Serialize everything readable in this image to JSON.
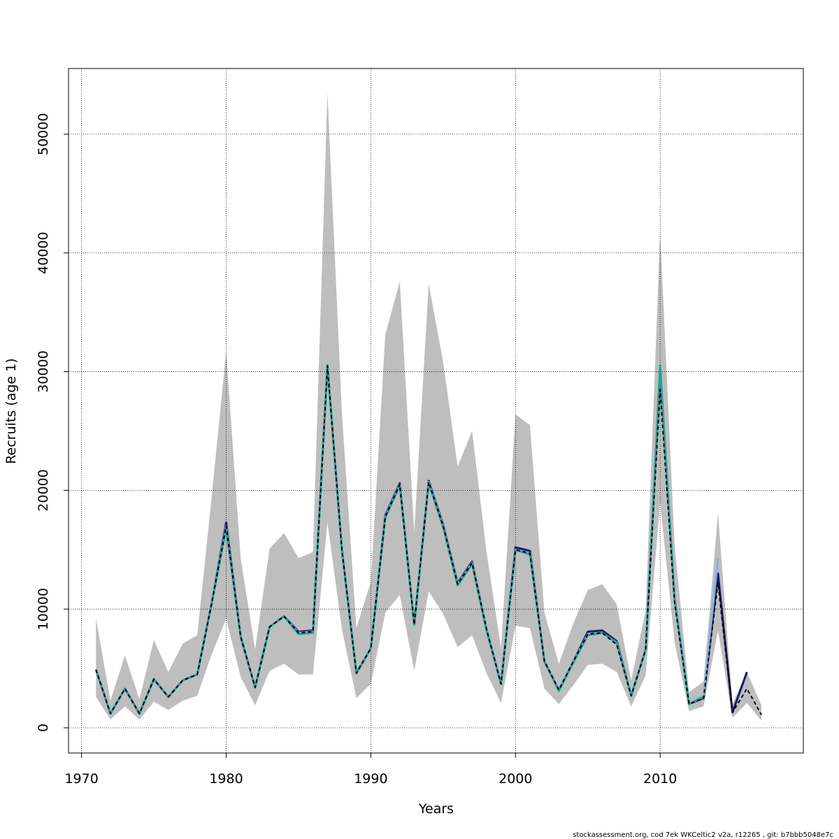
{
  "chart_data": {
    "type": "line",
    "x_label": "Years",
    "y_label": "Recruits (age 1)",
    "footer": "stockassessment.org, cod 7ek WKCeltic2 v2a, r12265 , git: b7bbb5048e7c",
    "x": [
      1971,
      1972,
      1973,
      1974,
      1975,
      1976,
      1977,
      1978,
      1979,
      1980,
      1981,
      1982,
      1983,
      1984,
      1985,
      1986,
      1987,
      1988,
      1989,
      1990,
      1991,
      1992,
      1993,
      1994,
      1995,
      1996,
      1997,
      1998,
      1999,
      2000,
      2001,
      2002,
      2003,
      2004,
      2005,
      2006,
      2007,
      2008,
      2009,
      2010,
      2011,
      2012,
      2013,
      2014,
      2015,
      2016,
      2017
    ],
    "band": {
      "color": "#bebebe",
      "lower": [
        2600,
        700,
        1800,
        700,
        2200,
        1500,
        2300,
        2700,
        6200,
        9200,
        4300,
        1900,
        4800,
        5400,
        4500,
        4500,
        17300,
        8300,
        2500,
        3700,
        9700,
        11200,
        4800,
        11500,
        9600,
        6800,
        7800,
        4600,
        2100,
        8600,
        8400,
        3300,
        2000,
        3600,
        5300,
        5400,
        4700,
        1800,
        4400,
        19000,
        7200,
        1400,
        1800,
        8200,
        850,
        2100,
        600
      ],
      "upper": [
        9200,
        2300,
        6100,
        2400,
        7400,
        4700,
        7100,
        7800,
        19500,
        31700,
        14300,
        6600,
        15100,
        16400,
        14300,
        14800,
        53500,
        26500,
        8400,
        12300,
        33100,
        37600,
        16500,
        37400,
        30800,
        22000,
        25000,
        14800,
        6700,
        26400,
        25500,
        9700,
        5400,
        8800,
        11600,
        12100,
        10400,
        4000,
        9900,
        41700,
        15400,
        3000,
        3900,
        18100,
        2000,
        4700,
        1900
      ]
    },
    "series": [
      {
        "color": "#1a1a6e",
        "values": [
          4900,
          1200,
          3300,
          1200,
          4100,
          2600,
          4000,
          4500,
          10500,
          17300,
          7700,
          3400,
          8500,
          9400,
          8100,
          8200,
          30500,
          15000,
          4600,
          6700,
          17900,
          20600,
          8700,
          20800,
          17100,
          12200,
          14000,
          8300,
          3700,
          15200,
          14900,
          5600,
          3200,
          5600,
          8100,
          8200,
          7300,
          2700,
          6600,
          30000,
          11000,
          2000,
          2500,
          13000,
          1300,
          4700,
          null
        ]
      },
      {
        "color": "#7fb3e0",
        "values": [
          4900,
          1200,
          3300,
          1200,
          4100,
          2600,
          4000,
          4500,
          10500,
          17000,
          7700,
          3400,
          8500,
          9400,
          8000,
          8100,
          30500,
          15000,
          4600,
          6700,
          17800,
          20500,
          8700,
          20700,
          17000,
          12100,
          13900,
          8300,
          3700,
          15000,
          14700,
          5600,
          3200,
          5600,
          7900,
          8000,
          7100,
          2700,
          6600,
          30500,
          11000,
          2100,
          2700,
          14300,
          null,
          null,
          null
        ]
      },
      {
        "color": "#2aa198",
        "values": [
          4900,
          1200,
          3300,
          1200,
          4100,
          2600,
          4000,
          4500,
          10500,
          16800,
          7700,
          3400,
          8500,
          9400,
          7900,
          8000,
          30500,
          15000,
          4600,
          6700,
          17700,
          20400,
          8700,
          20600,
          16900,
          12000,
          13800,
          8200,
          3700,
          15000,
          14600,
          5600,
          3100,
          5500,
          7800,
          8000,
          7200,
          2700,
          6600,
          30500,
          10800,
          2000,
          2600,
          null,
          null,
          null,
          null
        ]
      },
      {
        "color": "#000000",
        "dashed": true,
        "values": [
          4900,
          1200,
          3300,
          1200,
          4100,
          2600,
          4000,
          4500,
          10500,
          17000,
          7700,
          3400,
          8500,
          9400,
          8000,
          8100,
          30500,
          15000,
          4600,
          6700,
          17800,
          20500,
          8700,
          20700,
          17000,
          12100,
          13900,
          8300,
          3700,
          15000,
          14700,
          5600,
          3200,
          5600,
          7900,
          8000,
          7000,
          2700,
          6600,
          28500,
          10500,
          2000,
          2500,
          12200,
          1300,
          3300,
          1100
        ]
      }
    ],
    "xlim": [
      1969.1,
      2019.9
    ],
    "ylim": [
      -2120,
      55530
    ],
    "xticks": [
      1970,
      1980,
      1990,
      2000,
      2010
    ],
    "yticks": [
      0,
      10000,
      20000,
      30000,
      40000,
      50000
    ],
    "grid": true
  }
}
